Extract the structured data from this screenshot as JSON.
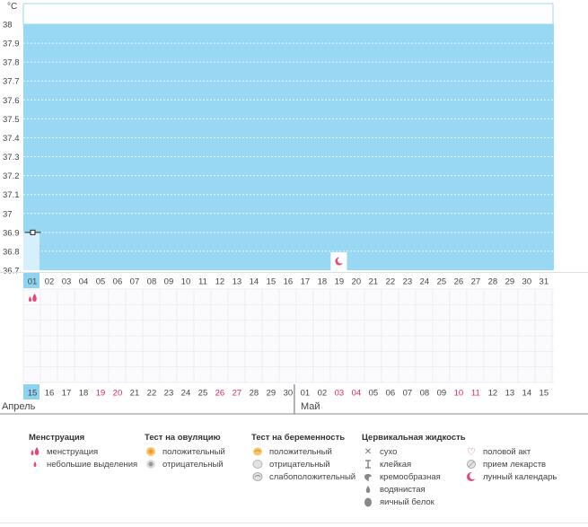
{
  "chart_data": {
    "type": "line",
    "title": "",
    "ylabel": "°C",
    "ylim": [
      36.7,
      38
    ],
    "yticks": [
      "38",
      "37.9",
      "37.8",
      "37.7",
      "37.6",
      "37.5",
      "37.4",
      "37.3",
      "37.2",
      "37.1",
      "37",
      "36.9",
      "36.8",
      "36.7"
    ],
    "series": [
      {
        "values": [
          {
            "day": "01",
            "temp": 36.9
          }
        ]
      }
    ]
  },
  "cycle": {
    "top_days": [
      "01",
      "02",
      "03",
      "04",
      "05",
      "06",
      "07",
      "08",
      "09",
      "10",
      "11",
      "12",
      "13",
      "14",
      "15",
      "16",
      "17",
      "18",
      "19",
      "20",
      "21",
      "22",
      "23",
      "24",
      "25",
      "26",
      "27",
      "28",
      "29",
      "30",
      "31"
    ],
    "bottom_days": [
      "15",
      "16",
      "17",
      "18",
      "19",
      "20",
      "21",
      "22",
      "23",
      "24",
      "25",
      "26",
      "27",
      "28",
      "29",
      "30",
      "01",
      "02",
      "03",
      "04",
      "05",
      "06",
      "07",
      "08",
      "09",
      "10",
      "11",
      "12",
      "13",
      "14",
      "15"
    ],
    "bottom_red": [
      4,
      5,
      11,
      12,
      18,
      19,
      25,
      26
    ],
    "menstruation_day_index": 0,
    "lunar_day_index": 18
  },
  "months": {
    "first": "Апрель",
    "second": "Май"
  },
  "colors": {
    "chart_bg": "#99d8f2",
    "highlight_col": "#d6effc",
    "selected_day_bg": "#8fd3f0",
    "weekend_red": "#d6285c",
    "pink": "#e8457a"
  },
  "legend": {
    "menstruation": {
      "title": "Менструация",
      "items": [
        {
          "icon": "menstruation-drops-icon",
          "label": "менструация"
        },
        {
          "icon": "small-drop-icon",
          "label": "небольшие выделения"
        }
      ]
    },
    "ovulation": {
      "title": "Тест на овуляцию",
      "items": [
        {
          "icon": "positive-test-icon",
          "label": "положительный"
        },
        {
          "icon": "negative-test-icon",
          "label": "отрицательный"
        }
      ]
    },
    "pregnancy": {
      "title": "Тест на беременность",
      "items": [
        {
          "icon": "positive-preg-icon",
          "label": "положительный"
        },
        {
          "icon": "negative-preg-icon",
          "label": "отрицательный"
        },
        {
          "icon": "weak-positive-icon",
          "label": "слабоположительный"
        }
      ]
    },
    "cervical": {
      "title": "Цервикальная жидкость",
      "items": [
        {
          "icon": "dry-icon",
          "label": "сухо"
        },
        {
          "icon": "sticky-icon",
          "label": "клейкая"
        },
        {
          "icon": "creamy-icon",
          "label": "кремообразная"
        },
        {
          "icon": "watery-icon",
          "label": "водянистая"
        },
        {
          "icon": "egg-white-icon",
          "label": "яичный белок"
        }
      ]
    },
    "other": {
      "items": [
        {
          "icon": "heart-icon",
          "label": "половой акт"
        },
        {
          "icon": "pill-icon",
          "label": "прием лекарств"
        },
        {
          "icon": "moon-icon",
          "label": "лунный календарь"
        }
      ]
    }
  }
}
